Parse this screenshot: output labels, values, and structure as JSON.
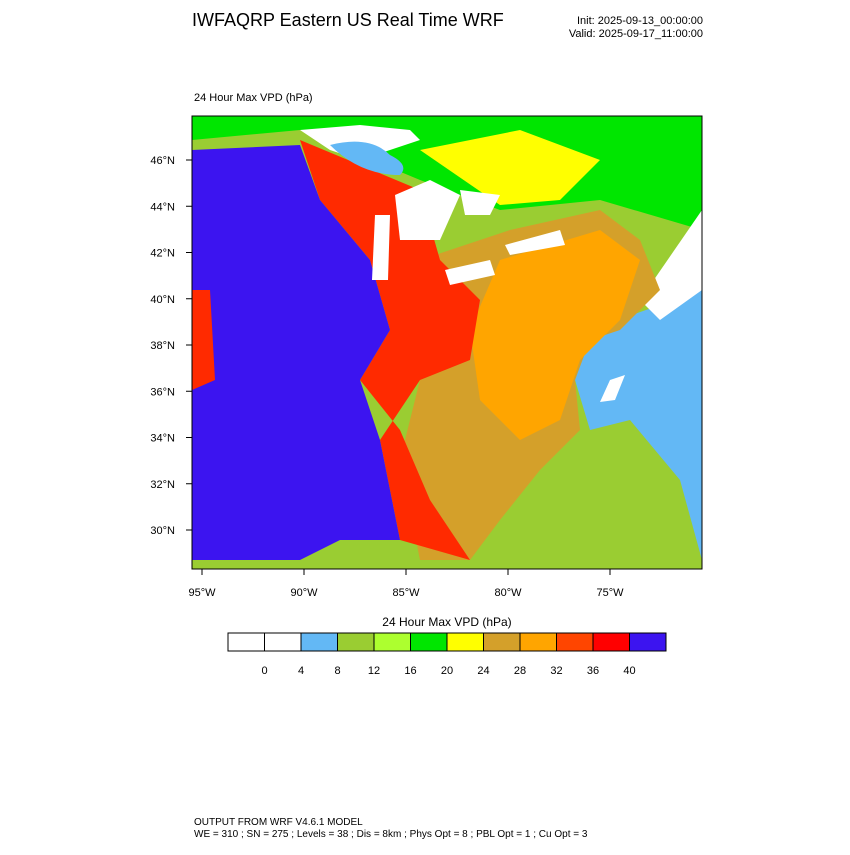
{
  "title": "IWFAQRP Eastern US Real Time WRF",
  "init": "Init: 2025-09-13_00:00:00",
  "valid": "Valid: 2025-09-17_11:00:00",
  "map": {
    "label": "24 Hour Max VPD   (hPa)",
    "lat_labels": [
      "46°N",
      "44°N",
      "42°N",
      "40°N",
      "38°N",
      "36°N",
      "34°N",
      "32°N",
      "30°N"
    ],
    "lon_labels": [
      "95°W",
      "90°W",
      "85°W",
      "80°W",
      "75°W"
    ]
  },
  "colorbar": {
    "title": "24 Hour Max VPD  (hPa)",
    "colors": [
      "#ffffff",
      "#ffffff",
      "#63b8f5",
      "#9acd32",
      "#adff2f",
      "#00e600",
      "#ffff00",
      "#d4a02a",
      "#ffa500",
      "#ff4500",
      "#ff0000",
      "#3c14f0"
    ],
    "labels": [
      "0",
      "4",
      "8",
      "12",
      "16",
      "20",
      "24",
      "28",
      "32",
      "36",
      "40"
    ]
  },
  "footer": {
    "line1": "OUTPUT FROM WRF V4.6.1 MODEL",
    "line2": "WE = 310 ; SN = 275 ; Levels = 38 ; Dis = 8km ; Phys Opt = 8 ; PBL Opt = 1 ; Cu Opt = 3"
  }
}
